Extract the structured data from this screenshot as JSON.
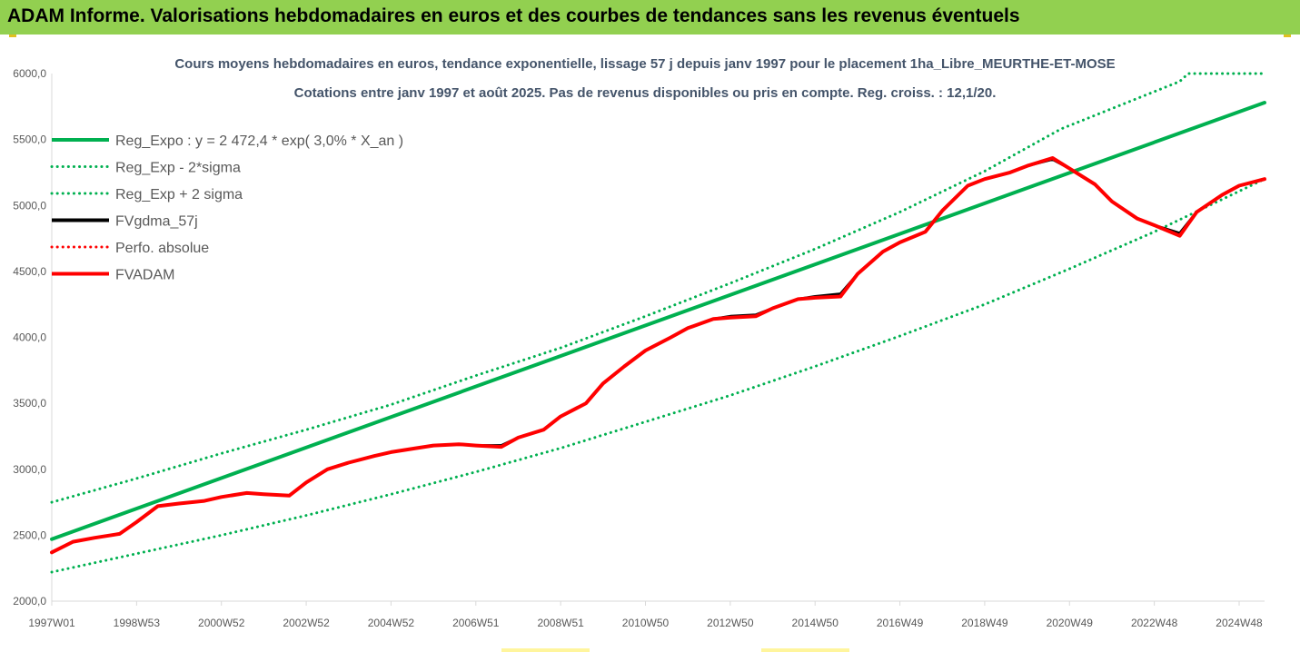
{
  "banner": {
    "title": "ADAM Informe. Valorisations hebdomadaires en euros et des courbes de tendances sans les revenus éventuels"
  },
  "colors": {
    "banner": "#92d050",
    "trend": "#00b050",
    "black": "#000000",
    "red": "#ff0000"
  },
  "chart_data": {
    "type": "line",
    "title": "Cours moyens hebdomadaires en euros, tendance exponentielle, lissage 57 j depuis janv 1997  pour le placement 1ha_Libre_MEURTHE-ET-MOSE",
    "subtitle": "Cotations entre janv 1997 et août 2025. Pas de revenus disponibles ou pris en compte. Reg. croiss. : 12,1/20.",
    "xlabel": "",
    "ylabel": "",
    "ylim": [
      2000,
      6000
    ],
    "xlim": [
      1997.0,
      2025.6
    ],
    "y_ticks": [
      2000,
      2500,
      3000,
      3500,
      4000,
      4500,
      5000,
      5500,
      6000
    ],
    "y_tick_labels": [
      "2000,0",
      "2500,0",
      "3000,0",
      "3500,0",
      "4000,0",
      "4500,0",
      "5000,0",
      "5500,0",
      "6000,0"
    ],
    "x_ticks": [
      {
        "label": "1997W01",
        "x": 1997.0
      },
      {
        "label": "1998W53",
        "x": 1999.0
      },
      {
        "label": "2000W52",
        "x": 2001.0
      },
      {
        "label": "2002W52",
        "x": 2003.0
      },
      {
        "label": "2004W52",
        "x": 2005.0
      },
      {
        "label": "2006W51",
        "x": 2007.0
      },
      {
        "label": "2008W51",
        "x": 2009.0
      },
      {
        "label": "2010W50",
        "x": 2011.0
      },
      {
        "label": "2012W50",
        "x": 2013.0
      },
      {
        "label": "2014W50",
        "x": 2015.0
      },
      {
        "label": "2016W49",
        "x": 2017.0
      },
      {
        "label": "2018W49",
        "x": 2019.0
      },
      {
        "label": "2020W49",
        "x": 2021.0
      },
      {
        "label": "2022W48",
        "x": 2023.0
      },
      {
        "label": "2024W48",
        "x": 2025.0
      }
    ],
    "grid": false,
    "legend_position": "top-left",
    "series": [
      {
        "name": "Reg_Expo : y = 2 472,4 * exp( 3,0% *  X_an )",
        "color": "#00b050",
        "style": "solid",
        "x": [
          1997.0,
          2025.6
        ],
        "y": [
          2470,
          5780
        ]
      },
      {
        "name": "Reg_Exp - 2*sigma",
        "color": "#00b050",
        "style": "dotted",
        "x": [
          1997.0,
          1999.0,
          2001.0,
          2003.0,
          2005.0,
          2007.0,
          2009.0,
          2011.0,
          2013.0,
          2015.0,
          2017.0,
          2019.0,
          2021.0,
          2023.0,
          2025.6
        ],
        "y": [
          2220,
          2360,
          2500,
          2650,
          2810,
          2980,
          3160,
          3360,
          3560,
          3780,
          4010,
          4250,
          4520,
          4800,
          5200
        ]
      },
      {
        "name": "Reg_Exp + 2 sigma",
        "color": "#00b050",
        "style": "dotted",
        "x": [
          1997.0,
          1999.0,
          2001.0,
          2003.0,
          2005.0,
          2007.0,
          2009.0,
          2011.0,
          2013.0,
          2015.0,
          2017.0,
          2019.0,
          2020.8,
          2023.6,
          2023.8,
          2025.6
        ],
        "y": [
          2750,
          2930,
          3120,
          3300,
          3490,
          3710,
          3920,
          4160,
          4410,
          4670,
          4950,
          5260,
          5580,
          5940,
          6000,
          6000
        ]
      },
      {
        "name": "FVgdma_57j",
        "color": "#000000",
        "style": "solid",
        "x": [
          1997.0,
          1997.5,
          1998.0,
          1998.6,
          1999.0,
          1999.5,
          2000.0,
          2000.6,
          2001.0,
          2001.6,
          2002.0,
          2002.6,
          2003.0,
          2003.5,
          2004.0,
          2004.6,
          2005.0,
          2005.6,
          2006.0,
          2006.6,
          2007.0,
          2007.6,
          2008.0,
          2008.6,
          2009.0,
          2009.6,
          2010.0,
          2010.5,
          2011.0,
          2011.6,
          2012.0,
          2012.6,
          2013.0,
          2013.6,
          2014.0,
          2014.6,
          2015.0,
          2015.6,
          2016.0,
          2016.6,
          2017.0,
          2017.6,
          2018.0,
          2018.6,
          2019.0,
          2019.6,
          2020.0,
          2020.6,
          2021.0,
          2021.6,
          2022.0,
          2022.6,
          2023.0,
          2023.6,
          2024.0,
          2024.6,
          2025.0,
          2025.6
        ],
        "y": [
          2370,
          2450,
          2480,
          2510,
          2600,
          2720,
          2740,
          2760,
          2790,
          2820,
          2810,
          2800,
          2900,
          3000,
          3050,
          3100,
          3130,
          3160,
          3180,
          3190,
          3180,
          3180,
          3240,
          3300,
          3400,
          3500,
          3650,
          3780,
          3900,
          4000,
          4070,
          4140,
          4160,
          4170,
          4220,
          4290,
          4310,
          4330,
          4480,
          4650,
          4720,
          4800,
          4960,
          5150,
          5200,
          5250,
          5300,
          5350,
          5280,
          5160,
          5030,
          4900,
          4850,
          4790,
          4950,
          5080,
          5150,
          5200
        ]
      },
      {
        "name": "Perfo. absolue",
        "color": "#ff0000",
        "style": "dotted",
        "x": [],
        "y": []
      },
      {
        "name": "FVADAM",
        "color": "#ff0000",
        "style": "solid",
        "x": [
          1997.0,
          1997.5,
          1998.0,
          1998.6,
          1999.0,
          1999.5,
          2000.0,
          2000.6,
          2001.0,
          2001.6,
          2002.0,
          2002.6,
          2003.0,
          2003.5,
          2004.0,
          2004.6,
          2005.0,
          2005.6,
          2006.0,
          2006.6,
          2007.0,
          2007.6,
          2008.0,
          2008.6,
          2009.0,
          2009.6,
          2010.0,
          2010.5,
          2011.0,
          2011.6,
          2012.0,
          2012.6,
          2013.0,
          2013.6,
          2014.0,
          2014.6,
          2015.0,
          2015.6,
          2016.0,
          2016.6,
          2017.0,
          2017.6,
          2018.0,
          2018.6,
          2019.0,
          2019.6,
          2020.0,
          2020.6,
          2021.0,
          2021.6,
          2022.0,
          2022.6,
          2023.0,
          2023.6,
          2024.0,
          2024.6,
          2025.0,
          2025.6
        ],
        "y": [
          2370,
          2450,
          2480,
          2510,
          2600,
          2720,
          2740,
          2760,
          2790,
          2820,
          2810,
          2800,
          2900,
          3000,
          3050,
          3100,
          3130,
          3160,
          3180,
          3190,
          3180,
          3170,
          3240,
          3300,
          3400,
          3500,
          3650,
          3780,
          3900,
          4000,
          4070,
          4140,
          4150,
          4160,
          4220,
          4290,
          4300,
          4310,
          4480,
          4650,
          4720,
          4800,
          4960,
          5150,
          5200,
          5250,
          5300,
          5360,
          5280,
          5160,
          5030,
          4900,
          4850,
          4770,
          4950,
          5080,
          5150,
          5200
        ]
      }
    ]
  }
}
